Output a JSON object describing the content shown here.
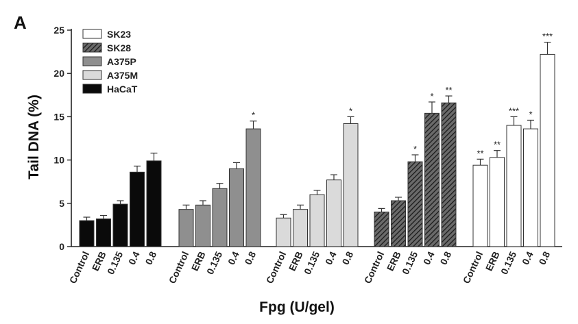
{
  "panel_label": "A",
  "chart_data": {
    "type": "bar",
    "title": "",
    "xlabel": "Fpg (U/gel)",
    "ylabel": "Tail DNA (%)",
    "ylim": [
      0,
      25
    ],
    "yticks": [
      0,
      5,
      10,
      15,
      20,
      25
    ],
    "grid": false,
    "legend_position": "top-left",
    "categories": [
      "Control",
      "ERB",
      "0.135",
      "0.4",
      "0.8"
    ],
    "series": [
      {
        "name": "HaCaT",
        "fill": "#0a0a0a",
        "pattern": "solid",
        "values": [
          3.0,
          3.2,
          4.9,
          8.6,
          9.9
        ],
        "errors": [
          0.4,
          0.4,
          0.4,
          0.7,
          0.9
        ],
        "significance": [
          "",
          "",
          "",
          "",
          ""
        ]
      },
      {
        "name": "A375P",
        "fill": "#8f8f8f",
        "pattern": "solid",
        "values": [
          4.3,
          4.8,
          6.7,
          9.0,
          13.6
        ],
        "errors": [
          0.5,
          0.5,
          0.6,
          0.7,
          0.9
        ],
        "significance": [
          "",
          "",
          "",
          "",
          "*"
        ]
      },
      {
        "name": "A375M",
        "fill": "#dadada",
        "pattern": "solid",
        "values": [
          3.3,
          4.3,
          6.0,
          7.7,
          14.2
        ],
        "errors": [
          0.4,
          0.5,
          0.5,
          0.6,
          0.8
        ],
        "significance": [
          "",
          "",
          "",
          "",
          "*"
        ]
      },
      {
        "name": "SK28",
        "fill": "#4a4a4a",
        "pattern": "hatched",
        "values": [
          4.0,
          5.3,
          9.8,
          15.4,
          16.6
        ],
        "errors": [
          0.4,
          0.4,
          0.8,
          1.3,
          0.8
        ],
        "significance": [
          "",
          "",
          "*",
          "*",
          "**"
        ]
      },
      {
        "name": "SK23",
        "fill": "#ffffff",
        "pattern": "solid",
        "values": [
          9.4,
          10.3,
          14.0,
          13.6,
          22.2
        ],
        "errors": [
          0.7,
          0.8,
          1.0,
          1.0,
          1.4
        ],
        "significance": [
          "**",
          "**",
          "***",
          "*",
          "***"
        ]
      }
    ],
    "legend_order": [
      "SK23",
      "SK28",
      "A375P",
      "A375M",
      "HaCaT"
    ]
  }
}
